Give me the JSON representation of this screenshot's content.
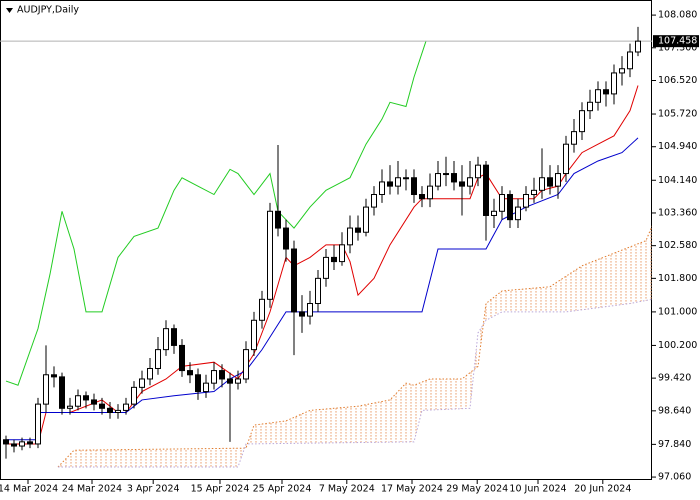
{
  "chart_data": {
    "type": "candlestick",
    "title": "AUDJPY,Daily",
    "xlim": [
      -0.75,
      80.75
    ],
    "ylim": [
      96.99,
      108.44
    ],
    "yticks": [
      {
        "value": 108.08,
        "label": "108.080"
      },
      {
        "value": 107.3,
        "label": "107.300"
      },
      {
        "value": 106.52,
        "label": "106.520"
      },
      {
        "value": 105.72,
        "label": "105.720"
      },
      {
        "value": 104.94,
        "label": "104.940"
      },
      {
        "value": 104.14,
        "label": "104.140"
      },
      {
        "value": 103.36,
        "label": "103.360"
      },
      {
        "value": 102.58,
        "label": "102.580"
      },
      {
        "value": 101.8,
        "label": "101.800"
      },
      {
        "value": 101,
        "label": "101.000"
      },
      {
        "value": 100.2,
        "label": "100.200"
      },
      {
        "value": 99.42,
        "label": "99.420"
      },
      {
        "value": 98.64,
        "label": "98.640"
      },
      {
        "value": 97.84,
        "label": "97.840"
      },
      {
        "value": 97.06,
        "label": "97.060"
      }
    ],
    "xticks": [
      {
        "value": 2.75,
        "label": "14 Mar 2024"
      },
      {
        "value": 10.75,
        "label": "24 Mar 2024"
      },
      {
        "value": 18.4,
        "label": "3 Apr 2024"
      },
      {
        "value": 26.75,
        "label": "15 Apr 2024"
      },
      {
        "value": 34.5,
        "label": "25 Apr 2024"
      },
      {
        "value": 42.6,
        "label": "7 May 2024"
      },
      {
        "value": 50.75,
        "label": "17 May 2024"
      },
      {
        "value": 58.9,
        "label": "29 May 2024"
      },
      {
        "value": 66.5,
        "label": "10 Jun 2024"
      },
      {
        "value": 74.6,
        "label": "20 Jun 2024"
      }
    ],
    "last_price": {
      "value": 107.458,
      "label": "107.458"
    },
    "open": [
      97.95,
      97.85,
      97.8,
      97.9,
      97.85,
      98.8,
      99.5,
      99.45,
      98.7,
      98.75,
      99.0,
      98.9,
      98.8,
      98.7,
      98.6,
      98.65,
      98.8,
      99.2,
      99.4,
      99.65,
      100.1,
      100.6,
      100.2,
      99.6,
      99.5,
      99.1,
      99.3,
      99.6,
      99.4,
      99.3,
      99.4,
      100.1,
      100.8,
      101.3,
      103.4,
      103.0,
      102.5,
      101.0,
      100.9,
      101.2,
      101.8,
      102.3,
      102.2,
      102.6,
      103.0,
      102.9,
      103.5,
      103.8,
      104.1,
      104.0,
      104.2,
      104.2,
      103.8,
      103.7,
      104.0,
      104.3,
      104.3,
      104.1,
      104.0,
      104.2,
      104.5,
      103.3,
      103.4,
      103.8,
      103.2,
      103.5,
      103.8,
      103.9,
      104.2,
      104.0,
      104.3,
      105.0,
      105.3,
      105.8,
      106.0,
      106.3,
      106.2,
      106.7,
      106.8,
      107.2
    ],
    "high": [
      98.05,
      97.95,
      98.0,
      98.0,
      98.95,
      100.2,
      99.7,
      99.55,
      98.95,
      99.15,
      99.1,
      99.05,
      98.95,
      98.85,
      98.8,
      98.95,
      99.35,
      99.6,
      99.9,
      100.4,
      100.8,
      100.7,
      100.35,
      99.8,
      99.65,
      99.5,
      99.8,
      99.75,
      99.55,
      99.6,
      100.3,
      101.0,
      101.5,
      103.6,
      104.98,
      103.2,
      102.7,
      101.4,
      101.5,
      102.0,
      102.5,
      102.6,
      102.9,
      103.3,
      103.3,
      103.7,
      104.0,
      104.4,
      104.5,
      104.6,
      104.4,
      104.4,
      104.0,
      104.3,
      104.6,
      104.7,
      104.6,
      104.5,
      104.6,
      104.7,
      104.6,
      103.7,
      104.0,
      103.9,
      103.7,
      104.0,
      104.2,
      104.9,
      104.5,
      104.5,
      105.2,
      105.6,
      106.0,
      106.3,
      106.5,
      106.5,
      106.9,
      107.1,
      107.4,
      107.8
    ],
    "low": [
      97.5,
      97.65,
      97.7,
      97.75,
      97.75,
      98.6,
      99.2,
      98.55,
      98.55,
      98.65,
      98.7,
      98.65,
      98.55,
      98.45,
      98.45,
      98.55,
      98.7,
      99.05,
      99.25,
      99.5,
      99.95,
      100.0,
      99.45,
      99.3,
      98.9,
      98.95,
      99.15,
      99.2,
      97.9,
      99.15,
      99.3,
      99.95,
      100.6,
      101.1,
      102.8,
      102.2,
      99.97,
      100.5,
      100.7,
      101.0,
      101.6,
      102.0,
      102.1,
      102.4,
      102.7,
      102.8,
      103.3,
      103.6,
      103.8,
      103.8,
      103.9,
      103.6,
      103.5,
      103.5,
      103.9,
      104.0,
      103.9,
      103.3,
      103.8,
      104.0,
      102.7,
      103.0,
      103.2,
      103.0,
      103.0,
      103.4,
      103.6,
      103.7,
      103.8,
      103.7,
      104.1,
      104.8,
      105.1,
      105.6,
      105.8,
      105.9,
      105.95,
      106.4,
      106.6,
      107.1
    ],
    "close": [
      97.85,
      97.8,
      97.9,
      97.85,
      98.8,
      99.5,
      99.45,
      98.7,
      98.75,
      99.0,
      98.9,
      98.8,
      98.7,
      98.6,
      98.65,
      98.8,
      99.2,
      99.4,
      99.65,
      100.1,
      100.6,
      100.2,
      99.6,
      99.5,
      99.1,
      99.3,
      99.6,
      99.4,
      99.3,
      99.4,
      100.1,
      100.8,
      101.3,
      103.4,
      103.0,
      102.5,
      101.0,
      100.9,
      101.2,
      101.8,
      102.3,
      102.2,
      102.6,
      103.0,
      102.9,
      103.5,
      103.8,
      104.1,
      104.0,
      104.2,
      104.2,
      103.8,
      103.7,
      104.0,
      104.3,
      104.3,
      104.1,
      104.0,
      104.2,
      104.5,
      103.3,
      103.4,
      103.8,
      103.2,
      103.5,
      103.8,
      103.9,
      104.2,
      104.0,
      104.3,
      105.0,
      105.3,
      105.8,
      106.0,
      106.3,
      106.2,
      106.7,
      106.8,
      107.2,
      107.458
    ],
    "lines": [
      {
        "color": "#e00000",
        "style": "solid",
        "x": [
          0,
          4,
          5,
          8,
          12,
          14,
          15,
          17,
          20,
          22,
          26,
          29,
          31,
          33,
          35,
          36,
          38,
          40,
          42,
          43,
          44,
          46,
          48,
          51,
          52,
          58,
          59,
          60,
          62,
          66,
          67,
          69,
          70,
          72,
          74,
          76,
          78,
          79
        ],
        "values": [
          97.85,
          97.85,
          98.6,
          98.6,
          98.9,
          98.6,
          98.6,
          99.1,
          99.4,
          99.7,
          99.8,
          99.4,
          100.0,
          101.0,
          102.3,
          102.1,
          102.3,
          102.6,
          102.6,
          102.2,
          101.4,
          101.8,
          102.6,
          103.5,
          103.7,
          103.7,
          104.2,
          104.3,
          103.7,
          103.7,
          103.9,
          104.0,
          104.3,
          104.8,
          105.0,
          105.2,
          105.8,
          106.4
        ]
      },
      {
        "color": "#0000cc",
        "style": "solid",
        "x": [
          0,
          4,
          4,
          15,
          17,
          21,
          26,
          28,
          30,
          32,
          35,
          52,
          54,
          60,
          62,
          65,
          69,
          71,
          74,
          77,
          79
        ],
        "values": [
          97.95,
          97.95,
          98.6,
          98.6,
          98.9,
          99.0,
          99.1,
          99.4,
          99.6,
          100.1,
          101.0,
          101.0,
          102.5,
          102.5,
          103.2,
          103.5,
          103.8,
          104.3,
          104.6,
          104.8,
          105.15
        ]
      },
      {
        "color": "#22cc22",
        "style": "solid",
        "x": [
          0,
          1.5,
          4,
          5.5,
          7,
          8.5,
          10,
          12,
          14,
          16,
          19,
          21,
          22,
          24,
          26,
          28,
          29,
          31,
          33,
          34,
          36,
          38,
          40,
          42,
          43,
          45,
          47,
          48,
          50,
          51,
          52.5
        ],
        "values": [
          99.35,
          99.25,
          100.6,
          101.9,
          103.4,
          102.5,
          101.0,
          101.0,
          102.3,
          102.8,
          103.0,
          103.9,
          104.2,
          104.0,
          103.8,
          104.4,
          104.3,
          103.8,
          104.3,
          103.4,
          103.0,
          103.5,
          103.9,
          104.1,
          104.2,
          105.0,
          105.6,
          106.0,
          105.9,
          106.6,
          107.46
        ]
      },
      {
        "color": "#e07a2b",
        "style": "dotted",
        "x": [
          6.5,
          8.5,
          30,
          31,
          35,
          38,
          44,
          48,
          50,
          51,
          53,
          57,
          59,
          60,
          62,
          68,
          72,
          76,
          80,
          80.75
        ],
        "values": [
          97.3,
          97.7,
          97.75,
          98.3,
          98.4,
          98.65,
          98.75,
          98.9,
          99.3,
          99.25,
          99.4,
          99.4,
          99.7,
          101.2,
          101.5,
          101.6,
          102.1,
          102.4,
          102.7,
          103.05
        ]
      },
      {
        "color": "#b9a6d8",
        "style": "dotted",
        "x": [
          6.5,
          29,
          30,
          51,
          52,
          58,
          59,
          60,
          62,
          70,
          74,
          78,
          80.75
        ],
        "values": [
          97.3,
          97.3,
          97.85,
          97.9,
          98.65,
          98.7,
          100.5,
          100.8,
          101.0,
          101.0,
          101.1,
          101.2,
          101.3
        ]
      }
    ]
  }
}
